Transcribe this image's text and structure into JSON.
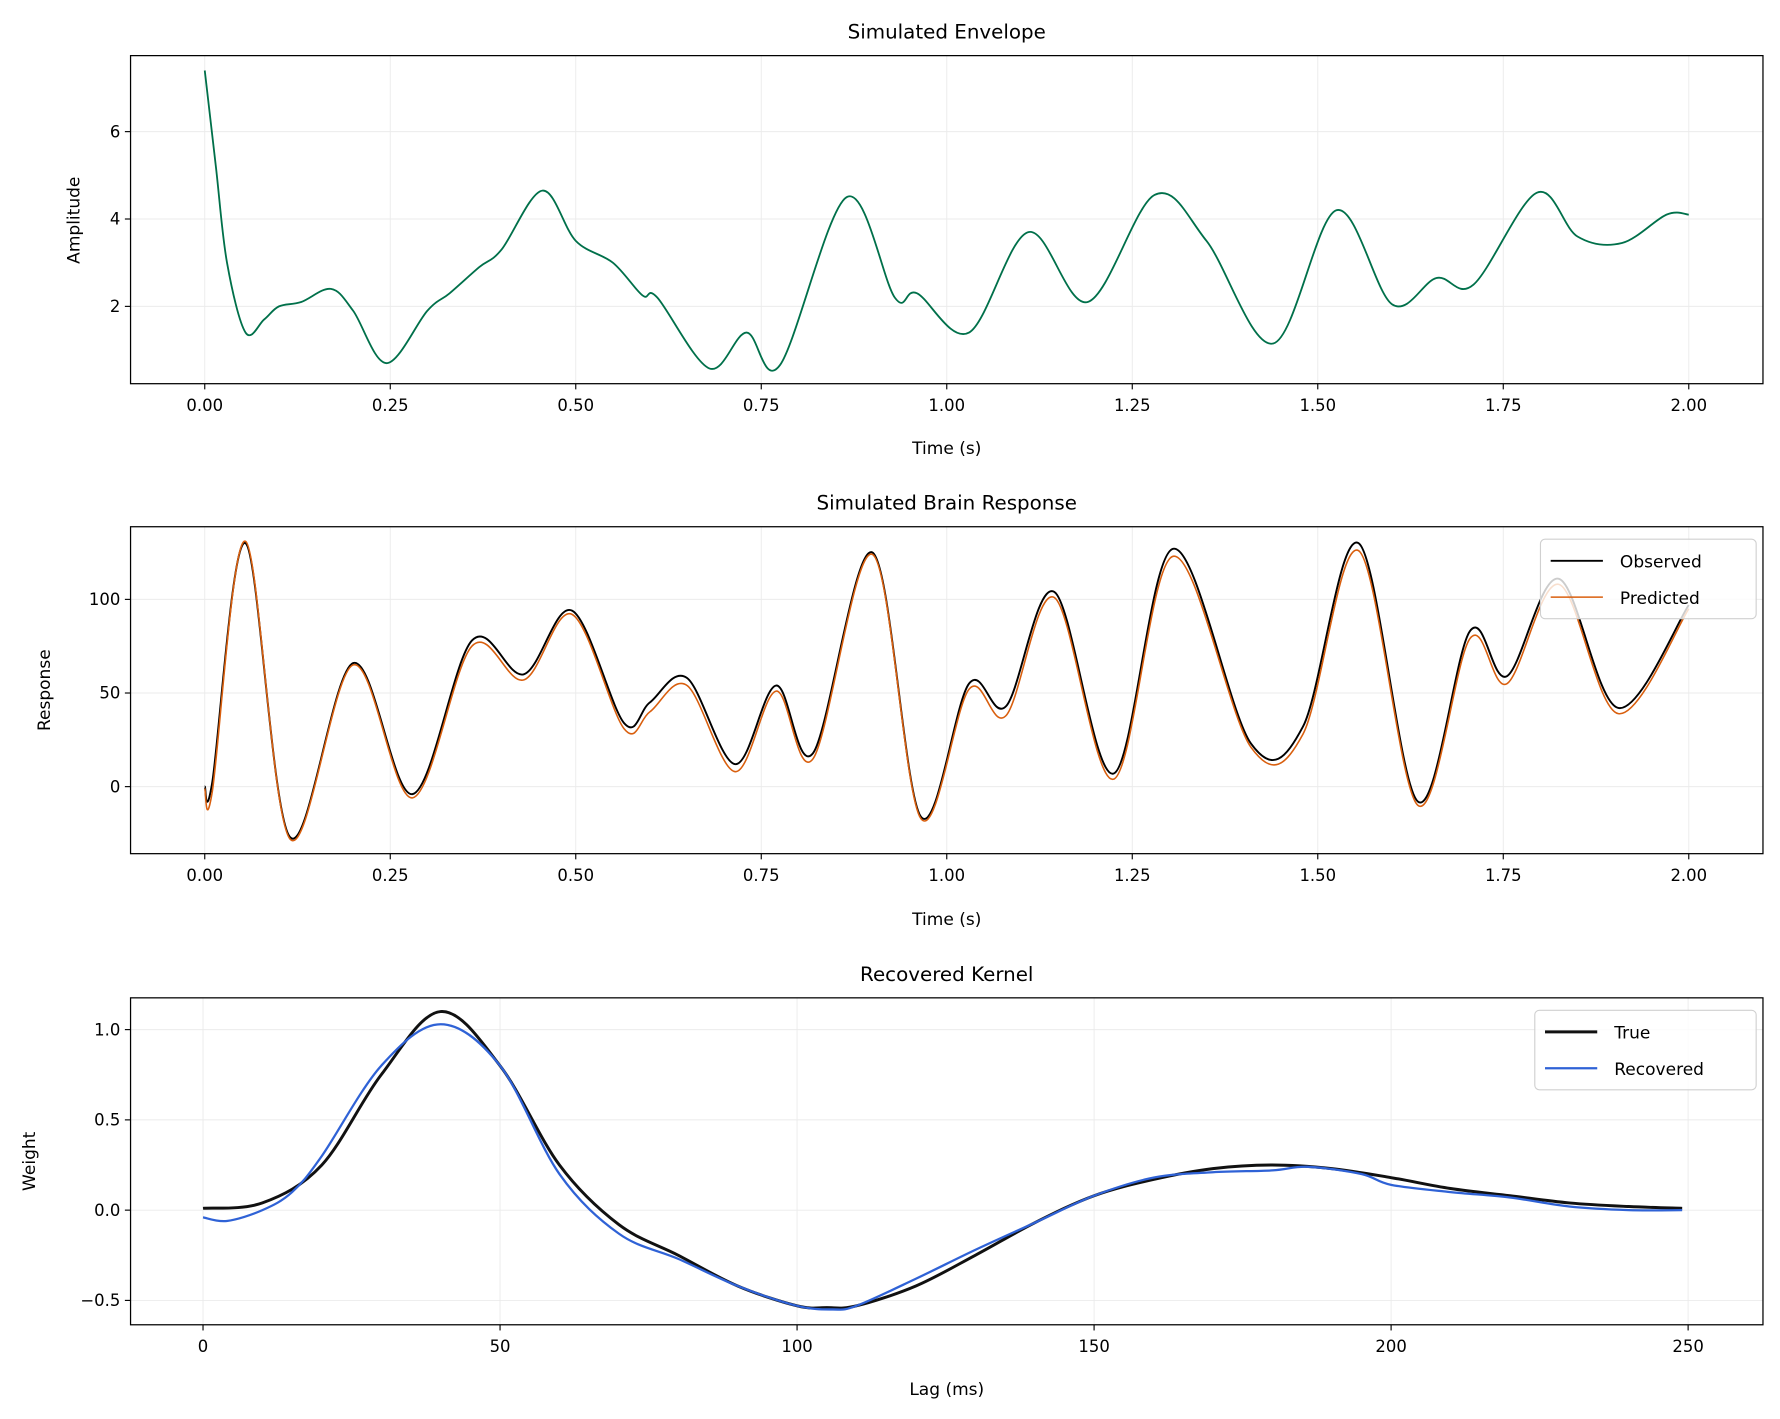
{
  "chart_data": [
    {
      "type": "line",
      "title": "Simulated Envelope",
      "xlabel": "Time (s)",
      "ylabel": "Amplitude",
      "xlim": [
        -0.1,
        2.1
      ],
      "ylim": [
        0.23,
        7.74
      ],
      "xticks": [
        "0.00",
        "0.25",
        "0.50",
        "0.75",
        "1.00",
        "1.25",
        "1.50",
        "1.75",
        "2.00"
      ],
      "yticks": [
        "2",
        "4",
        "6"
      ],
      "grid": true,
      "series": [
        {
          "color": "#00704a",
          "points": [
            [
              0,
              7.4
            ],
            [
              0.015,
              5.2
            ],
            [
              0.03,
              3.0
            ],
            [
              0.055,
              1.4
            ],
            [
              0.08,
              1.7
            ],
            [
              0.1,
              2.0
            ],
            [
              0.13,
              2.1
            ],
            [
              0.17,
              2.4
            ],
            [
              0.2,
              1.9
            ],
            [
              0.245,
              0.7
            ],
            [
              0.3,
              1.9
            ],
            [
              0.33,
              2.3
            ],
            [
              0.37,
              2.9
            ],
            [
              0.4,
              3.3
            ],
            [
              0.455,
              4.65
            ],
            [
              0.5,
              3.5
            ],
            [
              0.55,
              3.0
            ],
            [
              0.59,
              2.25
            ],
            [
              0.61,
              2.2
            ],
            [
              0.68,
              0.58
            ],
            [
              0.73,
              1.4
            ],
            [
              0.775,
              0.65
            ],
            [
              0.865,
              4.5
            ],
            [
              0.93,
              2.2
            ],
            [
              0.96,
              2.3
            ],
            [
              1.03,
              1.4
            ],
            [
              1.11,
              3.7
            ],
            [
              1.19,
              2.1
            ],
            [
              1.28,
              4.55
            ],
            [
              1.35,
              3.5
            ],
            [
              1.44,
              1.15
            ],
            [
              1.525,
              4.2
            ],
            [
              1.6,
              2.05
            ],
            [
              1.66,
              2.65
            ],
            [
              1.71,
              2.5
            ],
            [
              1.795,
              4.6
            ],
            [
              1.85,
              3.6
            ],
            [
              1.91,
              3.45
            ],
            [
              1.97,
              4.1
            ],
            [
              2.0,
              4.1
            ]
          ]
        }
      ]
    },
    {
      "type": "line",
      "title": "Simulated Brain Response",
      "xlabel": "Time (s)",
      "ylabel": "Response",
      "xlim": [
        -0.1,
        2.1
      ],
      "ylim": [
        -35.8,
        138.8
      ],
      "xticks": [
        "0.00",
        "0.25",
        "0.50",
        "0.75",
        "1.00",
        "1.25",
        "1.50",
        "1.75",
        "2.00"
      ],
      "yticks": [
        "0",
        "50",
        "100"
      ],
      "grid": true,
      "legend": "top-right",
      "series": [
        {
          "name": "Observed",
          "color": "#000000",
          "points": [
            [
              0,
              0
            ],
            [
              0.01,
              2
            ],
            [
              0.055,
              130
            ],
            [
              0.115,
              -27
            ],
            [
              0.2,
              66
            ],
            [
              0.28,
              -4
            ],
            [
              0.36,
              78
            ],
            [
              0.43,
              60
            ],
            [
              0.495,
              94
            ],
            [
              0.565,
              34
            ],
            [
              0.6,
              45
            ],
            [
              0.65,
              58
            ],
            [
              0.715,
              12
            ],
            [
              0.77,
              54
            ],
            [
              0.82,
              18
            ],
            [
              0.9,
              125
            ],
            [
              0.965,
              -16
            ],
            [
              1.03,
              55
            ],
            [
              1.08,
              43
            ],
            [
              1.145,
              104
            ],
            [
              1.225,
              7
            ],
            [
              1.305,
              127
            ],
            [
              1.41,
              23
            ],
            [
              1.48,
              32
            ],
            [
              1.555,
              130
            ],
            [
              1.635,
              -8
            ],
            [
              1.705,
              83
            ],
            [
              1.755,
              59
            ],
            [
              1.825,
              111
            ],
            [
              1.905,
              42
            ],
            [
              2.0,
              97
            ]
          ]
        },
        {
          "name": "Predicted",
          "color": "#d95f0e",
          "points": [
            [
              0,
              -1
            ],
            [
              0.01,
              -3
            ],
            [
              0.055,
              131
            ],
            [
              0.115,
              -28
            ],
            [
              0.2,
              65
            ],
            [
              0.28,
              -6
            ],
            [
              0.36,
              75
            ],
            [
              0.43,
              57
            ],
            [
              0.495,
              92
            ],
            [
              0.565,
              31
            ],
            [
              0.6,
              40
            ],
            [
              0.65,
              54
            ],
            [
              0.715,
              8
            ],
            [
              0.77,
              51
            ],
            [
              0.82,
              15
            ],
            [
              0.9,
              124
            ],
            [
              0.965,
              -17
            ],
            [
              1.03,
              52
            ],
            [
              1.08,
              38
            ],
            [
              1.145,
              101
            ],
            [
              1.225,
              4
            ],
            [
              1.305,
              123
            ],
            [
              1.41,
              21
            ],
            [
              1.48,
              28
            ],
            [
              1.555,
              126
            ],
            [
              1.635,
              -10
            ],
            [
              1.705,
              79
            ],
            [
              1.755,
              55
            ],
            [
              1.825,
              108
            ],
            [
              1.905,
              39
            ],
            [
              2.0,
              95
            ]
          ]
        }
      ]
    },
    {
      "type": "line",
      "title": "Recovered Kernel",
      "xlabel": "Lag (ms)",
      "ylabel": "Weight",
      "xlim": [
        -12.2,
        262.6
      ],
      "ylim": [
        -0.635,
        1.176
      ],
      "xticks": [
        "0",
        "50",
        "100",
        "150",
        "200",
        "250"
      ],
      "yticks": [
        "−0.5",
        "0.0",
        "0.5",
        "1.0"
      ],
      "grid": true,
      "legend": "top-right",
      "series": [
        {
          "name": "True",
          "color": "#111111",
          "points": [
            [
              0,
              0.01
            ],
            [
              10,
              0.04
            ],
            [
              20,
              0.25
            ],
            [
              30,
              0.75
            ],
            [
              40,
              1.1
            ],
            [
              50,
              0.8
            ],
            [
              60,
              0.25
            ],
            [
              70,
              -0.08
            ],
            [
              80,
              -0.25
            ],
            [
              90,
              -0.42
            ],
            [
              100,
              -0.53
            ],
            [
              105,
              -0.54
            ],
            [
              110,
              -0.53
            ],
            [
              120,
              -0.42
            ],
            [
              130,
              -0.25
            ],
            [
              140,
              -0.07
            ],
            [
              150,
              0.08
            ],
            [
              160,
              0.17
            ],
            [
              170,
              0.23
            ],
            [
              180,
              0.25
            ],
            [
              190,
              0.23
            ],
            [
              200,
              0.18
            ],
            [
              210,
              0.12
            ],
            [
              220,
              0.08
            ],
            [
              230,
              0.04
            ],
            [
              240,
              0.02
            ],
            [
              249,
              0.01
            ]
          ]
        },
        {
          "name": "Recovered",
          "color": "#2f62d6",
          "points": [
            [
              0,
              -0.04
            ],
            [
              4,
              -0.06
            ],
            [
              10,
              0.0
            ],
            [
              15,
              0.1
            ],
            [
              20,
              0.3
            ],
            [
              30,
              0.8
            ],
            [
              40,
              1.03
            ],
            [
              50,
              0.8
            ],
            [
              60,
              0.2
            ],
            [
              70,
              -0.13
            ],
            [
              80,
              -0.27
            ],
            [
              90,
              -0.42
            ],
            [
              100,
              -0.53
            ],
            [
              106,
              -0.55
            ],
            [
              110,
              -0.53
            ],
            [
              120,
              -0.38
            ],
            [
              130,
              -0.22
            ],
            [
              140,
              -0.07
            ],
            [
              150,
              0.08
            ],
            [
              160,
              0.18
            ],
            [
              170,
              0.21
            ],
            [
              180,
              0.22
            ],
            [
              186,
              0.24
            ],
            [
              195,
              0.2
            ],
            [
              200,
              0.14
            ],
            [
              210,
              0.1
            ],
            [
              220,
              0.07
            ],
            [
              230,
              0.02
            ],
            [
              240,
              0.0
            ],
            [
              249,
              0.0
            ]
          ]
        }
      ]
    }
  ]
}
